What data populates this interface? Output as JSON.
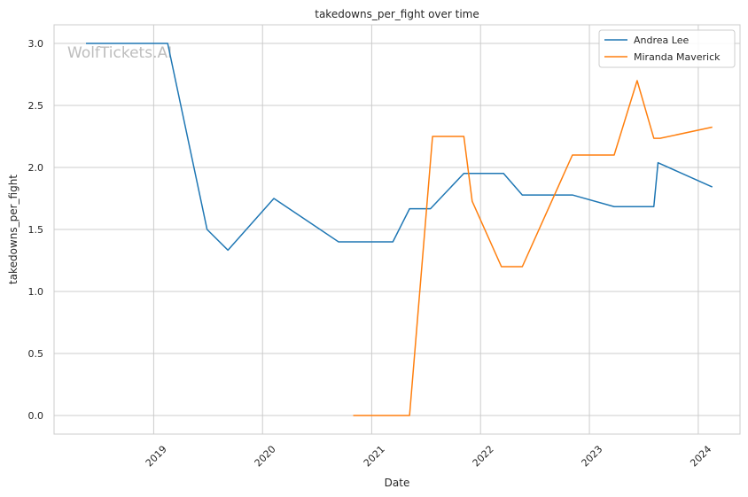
{
  "watermark": "WolfTickets.AI",
  "chart_data": {
    "type": "line",
    "title": "takedowns_per_fight over time",
    "xlabel": "Date",
    "ylabel": "takedowns_per_fight",
    "x_ticks": [
      "2019",
      "2020",
      "2021",
      "2022",
      "2023",
      "2024"
    ],
    "y_ticks": [
      "0.0",
      "0.5",
      "1.0",
      "1.5",
      "2.0",
      "2.5",
      "3.0"
    ],
    "ylim": [
      -0.15,
      3.15
    ],
    "xlim": [
      "2018-02-01",
      "2024-05-20"
    ],
    "grid": true,
    "legend_position": "top-right",
    "series": [
      {
        "name": "Andrea Lee",
        "color": "#1f77b4",
        "points": [
          [
            "2018-05-19",
            3.0
          ],
          [
            "2019-02-17",
            3.0
          ],
          [
            "2019-06-29",
            1.5
          ],
          [
            "2019-09-07",
            1.333
          ],
          [
            "2020-02-08",
            1.75
          ],
          [
            "2020-09-12",
            1.4
          ],
          [
            "2021-03-13",
            1.4
          ],
          [
            "2021-05-08",
            1.667
          ],
          [
            "2021-07-17",
            1.667
          ],
          [
            "2021-11-06",
            1.952
          ],
          [
            "2022-03-19",
            1.952
          ],
          [
            "2022-05-21",
            1.778
          ],
          [
            "2022-11-05",
            1.778
          ],
          [
            "2023-03-25",
            1.684
          ],
          [
            "2023-08-05",
            1.684
          ],
          [
            "2023-08-19",
            2.038
          ],
          [
            "2024-02-17",
            1.842
          ]
        ]
      },
      {
        "name": "Miranda Maverick",
        "color": "#ff7f0e",
        "points": [
          [
            "2020-10-31",
            0.0
          ],
          [
            "2021-05-08",
            0.0
          ],
          [
            "2021-07-24",
            2.25
          ],
          [
            "2021-11-06",
            2.25
          ],
          [
            "2021-12-04",
            1.727
          ],
          [
            "2022-03-12",
            1.2
          ],
          [
            "2022-05-21",
            1.2
          ],
          [
            "2022-11-05",
            2.1
          ],
          [
            "2023-03-25",
            2.1
          ],
          [
            "2023-06-10",
            2.7
          ],
          [
            "2023-08-05",
            2.235
          ],
          [
            "2023-08-26",
            2.235
          ],
          [
            "2024-02-17",
            2.325
          ]
        ]
      }
    ]
  }
}
